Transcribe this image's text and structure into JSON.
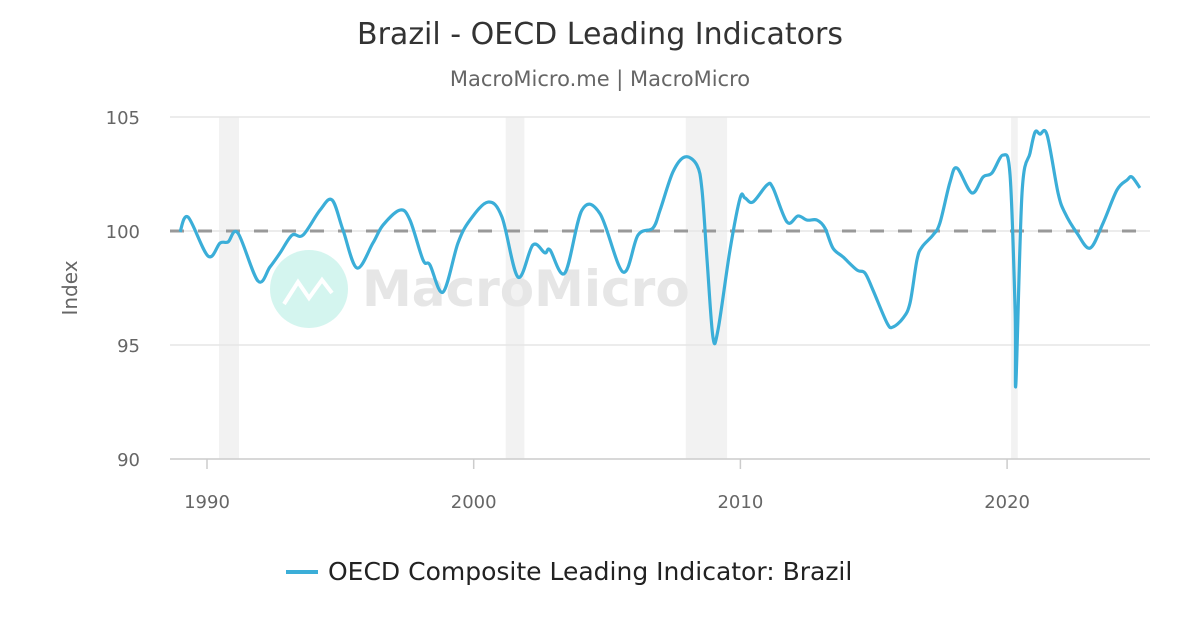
{
  "chart_data": {
    "type": "line",
    "title": "Brazil - OECD Leading Indicators",
    "subtitle": "MacroMicro.me | MacroMicro",
    "ylabel": "Index",
    "xlabel": "",
    "ylim": [
      90,
      105
    ],
    "xlim": [
      1988.6,
      2025.6
    ],
    "yticks": [
      "90",
      "95",
      "100",
      "105"
    ],
    "xticks": [
      "1990",
      "2000",
      "2010",
      "2020"
    ],
    "grid": "horizontal",
    "reference_line": 100,
    "legend_position": "bottom",
    "recession_bands": [
      [
        1990.45,
        1991.2
      ],
      [
        2001.2,
        2001.9
      ],
      [
        2007.95,
        2009.5
      ],
      [
        2020.15,
        2020.4
      ]
    ],
    "series": [
      {
        "name": "OECD Composite Leading Indicator: Brazil",
        "color": "#3baed8",
        "x": [
          1988.99,
          1989.29,
          1990.04,
          1990.49,
          1990.79,
          1991.16,
          1991.91,
          1992.36,
          1992.74,
          1993.19,
          1993.6,
          1994.24,
          1994.69,
          1995.1,
          1995.62,
          1996.22,
          1996.6,
          1997.24,
          1997.61,
          1998.1,
          1998.36,
          1998.85,
          1999.41,
          1999.86,
          2000.54,
          2001.06,
          2001.66,
          2002.22,
          2002.67,
          2002.86,
          2003.42,
          2004.06,
          2004.74,
          2005.6,
          2006.16,
          2006.72,
          2006.99,
          2007.47,
          2007.92,
          2008.37,
          2008.56,
          2008.75,
          2008.97,
          2009.16,
          2009.61,
          2009.99,
          2010.17,
          2010.47,
          2011.0,
          2011.22,
          2011.75,
          2012.16,
          2012.5,
          2012.87,
          2013.17,
          2013.47,
          2013.85,
          2014.37,
          2014.67,
          2014.97,
          2015.5,
          2015.72,
          2016.1,
          2016.36,
          2016.62,
          2016.81,
          2017.22,
          2017.48,
          2017.86,
          2018.12,
          2018.68,
          2019.1,
          2019.43,
          2019.85,
          2020.11,
          2020.3,
          2020.33,
          2020.56,
          2020.86,
          2021.05,
          2021.23,
          2021.5,
          2021.91,
          2022.17,
          2022.62,
          2023.11,
          2023.6,
          2024.12,
          2024.5,
          2024.68,
          2024.98
        ],
        "values": [
          99.96,
          100.61,
          98.9,
          99.47,
          99.52,
          99.91,
          97.81,
          98.42,
          99.04,
          99.82,
          99.82,
          100.92,
          101.36,
          100.04,
          98.38,
          99.47,
          100.26,
          100.92,
          100.48,
          98.73,
          98.51,
          97.32,
          99.47,
          100.48,
          101.27,
          100.61,
          97.98,
          99.39,
          99.04,
          99.17,
          98.16,
          100.92,
          100.75,
          98.2,
          99.82,
          100.13,
          100.92,
          102.59,
          103.25,
          102.89,
          101.8,
          98.73,
          95.35,
          95.66,
          99.17,
          101.45,
          101.45,
          101.27,
          102.02,
          101.89,
          100.39,
          100.66,
          100.48,
          100.48,
          100.13,
          99.25,
          98.86,
          98.29,
          98.16,
          97.41,
          95.96,
          95.79,
          96.18,
          96.84,
          98.73,
          99.3,
          99.82,
          100.35,
          102.15,
          102.76,
          101.67,
          102.37,
          102.54,
          103.33,
          102.46,
          96.54,
          93.33,
          101.67,
          103.42,
          104.34,
          104.25,
          104.21,
          101.67,
          100.79,
          99.91,
          99.25,
          100.35,
          101.8,
          102.24,
          102.37,
          101.89
        ]
      }
    ]
  },
  "watermark": "MacroMicro"
}
